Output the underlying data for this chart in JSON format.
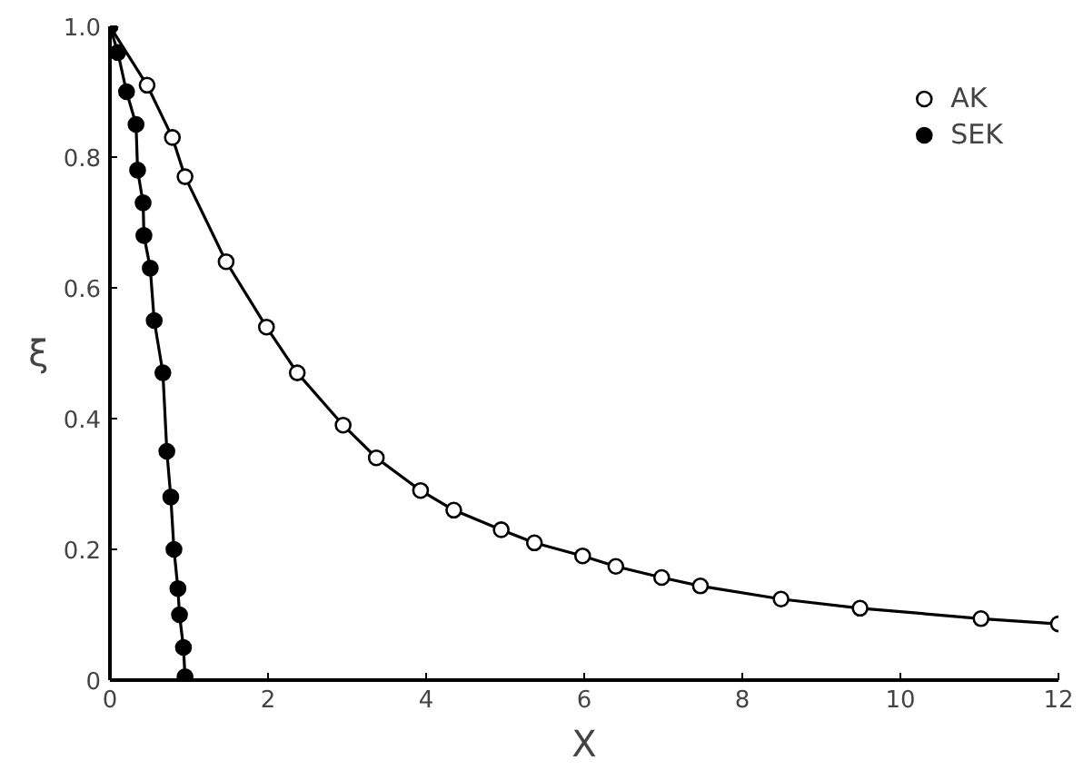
{
  "chart_data": {
    "type": "line",
    "xlabel": "X",
    "ylabel": "ξ",
    "xlim": [
      0,
      12
    ],
    "ylim": [
      0,
      1.0
    ],
    "xticks": [
      0,
      2,
      4,
      6,
      8,
      10,
      12
    ],
    "yticks": [
      0,
      0.2,
      0.4,
      0.6,
      0.8,
      {
        "value": 1.0,
        "label": "1.0"
      }
    ],
    "grid": false,
    "legend": "top right",
    "line_style": "solid",
    "series": [
      {
        "name": "AK",
        "color": "#000000",
        "marker": "circle_open",
        "x": [
          0,
          0.47,
          0.79,
          0.95,
          1.47,
          1.98,
          2.37,
          2.95,
          3.37,
          3.93,
          4.35,
          4.95,
          5.37,
          5.98,
          6.4,
          6.98,
          7.47,
          8.49,
          9.49,
          11.02,
          12.0
        ],
        "values": [
          1.0,
          0.91,
          0.83,
          0.77,
          0.64,
          0.54,
          0.47,
          0.39,
          0.34,
          0.29,
          0.26,
          0.23,
          0.21,
          0.19,
          0.174,
          0.157,
          0.144,
          0.124,
          0.11,
          0.094,
          0.086
        ]
      },
      {
        "name": "SEK",
        "color": "#000000",
        "marker": "circle",
        "x": [
          0,
          0.1,
          0.21,
          0.33,
          0.35,
          0.42,
          0.43,
          0.51,
          0.56,
          0.67,
          0.72,
          0.77,
          0.81,
          0.86,
          0.88,
          0.93,
          0.95
        ],
        "values": [
          1.0,
          0.96,
          0.9,
          0.85,
          0.78,
          0.73,
          0.68,
          0.63,
          0.55,
          0.47,
          0.35,
          0.28,
          0.2,
          0.14,
          0.1,
          0.05,
          0.005
        ]
      }
    ]
  }
}
